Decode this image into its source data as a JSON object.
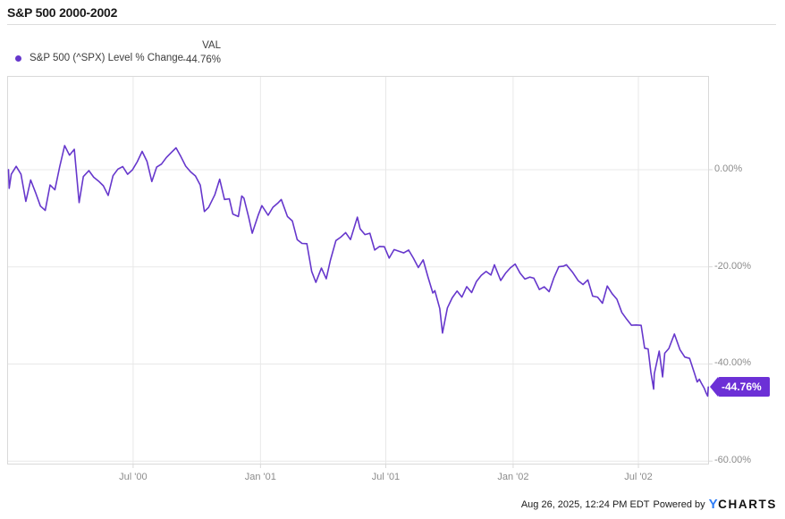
{
  "header": {
    "title": "S&P 500 2000-2002"
  },
  "legend": {
    "series_label": "S&P 500 (^SPX) Level % Change",
    "val_header": "VAL",
    "val_value": "-44.76%"
  },
  "footer": {
    "timestamp": "Aug 26, 2025, 12:24 PM EDT",
    "powered_by": "Powered by",
    "logo_y": "Y",
    "logo_charts": "CHARTS"
  },
  "colors": {
    "line": "#6637cc",
    "badge_bg": "#6c30d6",
    "badge_text": "#ffffff",
    "grid": "#e8e8e8",
    "plot_border": "#d9d9d9",
    "axis_text": "#8c8c8c",
    "legend_marker": "#6637cc"
  },
  "chart_data": {
    "type": "line",
    "title": "S&P 500 2000-2002",
    "ylabel": "Level % Change",
    "grid": true,
    "legend_position": "top-left",
    "last_value_label": "-44.76%",
    "x_axis": {
      "min": "2000-01-01",
      "max": "2002-10-11",
      "ticks": [
        {
          "date": "2000-07-01",
          "label": "Jul '00"
        },
        {
          "date": "2001-01-01",
          "label": "Jan '01"
        },
        {
          "date": "2001-07-01",
          "label": "Jul '01"
        },
        {
          "date": "2002-01-01",
          "label": "Jan '02"
        },
        {
          "date": "2002-07-01",
          "label": "Jul '02"
        }
      ]
    },
    "y_axis": {
      "min": -60.7,
      "max": 19.3,
      "unit": "%",
      "ticks": [
        {
          "value": 0,
          "label": "0.00%"
        },
        {
          "value": -20,
          "label": "-20.00%"
        },
        {
          "value": -40,
          "label": "-40.00%"
        },
        {
          "value": -60,
          "label": "-60.00%"
        }
      ]
    },
    "series": [
      {
        "name": "S&P 500 (^SPX) Level % Change",
        "color": "#6637cc",
        "points": [
          [
            "2000-01-03",
            0.0
          ],
          [
            "2000-01-04",
            -3.83
          ],
          [
            "2000-01-07",
            -0.94
          ],
          [
            "2000-01-14",
            0.68
          ],
          [
            "2000-01-21",
            -0.95
          ],
          [
            "2000-01-28",
            -6.53
          ],
          [
            "2000-02-04",
            -2.12
          ],
          [
            "2000-02-11",
            -4.68
          ],
          [
            "2000-02-18",
            -7.5
          ],
          [
            "2000-02-25",
            -8.37
          ],
          [
            "2000-03-03",
            -3.16
          ],
          [
            "2000-03-10",
            -4.13
          ],
          [
            "2000-03-17",
            0.64
          ],
          [
            "2000-03-24",
            4.96
          ],
          [
            "2000-03-31",
            2.98
          ],
          [
            "2000-04-07",
            4.2
          ],
          [
            "2000-04-14",
            -6.78
          ],
          [
            "2000-04-20",
            -1.42
          ],
          [
            "2000-04-28",
            -0.19
          ],
          [
            "2000-05-05",
            -1.55
          ],
          [
            "2000-05-12",
            -2.35
          ],
          [
            "2000-05-19",
            -3.32
          ],
          [
            "2000-05-26",
            -5.3
          ],
          [
            "2000-06-02",
            -1.24
          ],
          [
            "2000-06-09",
            0.12
          ],
          [
            "2000-06-16",
            0.63
          ],
          [
            "2000-06-23",
            -0.94
          ],
          [
            "2000-06-30",
            -0.04
          ],
          [
            "2000-07-07",
            1.63
          ],
          [
            "2000-07-14",
            3.76
          ],
          [
            "2000-07-21",
            1.72
          ],
          [
            "2000-07-28",
            -2.43
          ],
          [
            "2000-08-04",
            0.53
          ],
          [
            "2000-08-11",
            1.14
          ],
          [
            "2000-08-18",
            2.51
          ],
          [
            "2000-08-25",
            3.52
          ],
          [
            "2000-09-01",
            4.5
          ],
          [
            "2000-09-08",
            2.7
          ],
          [
            "2000-09-15",
            0.73
          ],
          [
            "2000-09-22",
            -0.45
          ],
          [
            "2000-09-29",
            -1.29
          ],
          [
            "2000-10-06",
            -3.18
          ],
          [
            "2000-10-12",
            -8.62
          ],
          [
            "2000-10-18",
            -7.77
          ],
          [
            "2000-10-27",
            -5.2
          ],
          [
            "2000-11-03",
            -1.96
          ],
          [
            "2000-11-10",
            -6.13
          ],
          [
            "2000-11-17",
            -6.01
          ],
          [
            "2000-11-22",
            -9.13
          ],
          [
            "2000-11-30",
            -9.64
          ],
          [
            "2000-12-05",
            -5.41
          ],
          [
            "2000-12-08",
            -5.86
          ],
          [
            "2000-12-15",
            -9.83
          ],
          [
            "2000-12-20",
            -13.09
          ],
          [
            "2000-12-29",
            -9.27
          ],
          [
            "2001-01-03",
            -7.4
          ],
          [
            "2001-01-12",
            -9.39
          ],
          [
            "2001-01-19",
            -7.74
          ],
          [
            "2001-01-26",
            -6.89
          ],
          [
            "2001-01-31",
            -6.13
          ],
          [
            "2001-02-09",
            -9.65
          ],
          [
            "2001-02-16",
            -10.56
          ],
          [
            "2001-02-23",
            -14.39
          ],
          [
            "2001-03-02",
            -15.19
          ],
          [
            "2001-03-09",
            -15.24
          ],
          [
            "2001-03-16",
            -20.94
          ],
          [
            "2001-03-22",
            -23.2
          ],
          [
            "2001-03-30",
            -20.26
          ],
          [
            "2001-04-06",
            -22.46
          ],
          [
            "2001-04-12",
            -18.67
          ],
          [
            "2001-04-20",
            -14.59
          ],
          [
            "2001-04-27",
            -13.89
          ],
          [
            "2001-05-04",
            -12.96
          ],
          [
            "2001-05-11",
            -14.4
          ],
          [
            "2001-05-21",
            -9.78
          ],
          [
            "2001-05-25",
            -12.19
          ],
          [
            "2001-06-01",
            -13.37
          ],
          [
            "2001-06-08",
            -13.08
          ],
          [
            "2001-06-15",
            -16.55
          ],
          [
            "2001-06-22",
            -15.8
          ],
          [
            "2001-06-29",
            -15.86
          ],
          [
            "2001-07-06",
            -18.19
          ],
          [
            "2001-07-13",
            -16.46
          ],
          [
            "2001-07-20",
            -16.79
          ],
          [
            "2001-07-27",
            -17.14
          ],
          [
            "2001-08-03",
            -16.55
          ],
          [
            "2001-08-10",
            -18.21
          ],
          [
            "2001-08-17",
            -20.15
          ],
          [
            "2001-08-24",
            -18.57
          ],
          [
            "2001-08-31",
            -22.1
          ],
          [
            "2001-09-07",
            -25.39
          ],
          [
            "2001-09-10",
            -24.92
          ],
          [
            "2001-09-17",
            -28.62
          ],
          [
            "2001-09-21",
            -33.63
          ],
          [
            "2001-09-28",
            -28.47
          ],
          [
            "2001-10-05",
            -26.38
          ],
          [
            "2001-10-12",
            -24.98
          ],
          [
            "2001-10-19",
            -26.23
          ],
          [
            "2001-10-26",
            -24.09
          ],
          [
            "2001-11-02",
            -25.29
          ],
          [
            "2001-11-09",
            -23.01
          ],
          [
            "2001-11-16",
            -21.75
          ],
          [
            "2001-11-23",
            -20.95
          ],
          [
            "2001-11-30",
            -21.7
          ],
          [
            "2001-12-05",
            -19.58
          ],
          [
            "2001-12-14",
            -22.82
          ],
          [
            "2001-12-21",
            -21.33
          ],
          [
            "2001-12-28",
            -20.22
          ],
          [
            "2002-01-04",
            -19.43
          ],
          [
            "2002-01-11",
            -21.28
          ],
          [
            "2002-01-18",
            -22.52
          ],
          [
            "2002-01-25",
            -22.12
          ],
          [
            "2002-01-31",
            -22.34
          ],
          [
            "2002-02-08",
            -24.67
          ],
          [
            "2002-02-15",
            -24.12
          ],
          [
            "2002-02-22",
            -25.11
          ],
          [
            "2002-03-01",
            -22.23
          ],
          [
            "2002-03-08",
            -19.99
          ],
          [
            "2002-03-15",
            -19.86
          ],
          [
            "2002-03-19",
            -19.58
          ],
          [
            "2002-03-28",
            -21.15
          ],
          [
            "2002-04-05",
            -22.85
          ],
          [
            "2002-04-12",
            -23.65
          ],
          [
            "2002-04-19",
            -22.68
          ],
          [
            "2002-04-26",
            -26.04
          ],
          [
            "2002-05-03",
            -26.24
          ],
          [
            "2002-05-10",
            -27.5
          ],
          [
            "2002-05-17",
            -23.96
          ],
          [
            "2002-05-24",
            -25.52
          ],
          [
            "2002-05-31",
            -26.67
          ],
          [
            "2002-06-07",
            -29.39
          ],
          [
            "2002-06-14",
            -30.78
          ],
          [
            "2002-06-21",
            -32.03
          ],
          [
            "2002-06-28",
            -31.98
          ],
          [
            "2002-07-05",
            -32.04
          ],
          [
            "2002-07-10",
            -36.75
          ],
          [
            "2002-07-15",
            -36.92
          ],
          [
            "2002-07-19",
            -41.74
          ],
          [
            "2002-07-23",
            -45.18
          ],
          [
            "2002-07-24",
            -42.04
          ],
          [
            "2002-07-31",
            -37.35
          ],
          [
            "2002-08-05",
            -42.65
          ],
          [
            "2002-08-08",
            -37.78
          ],
          [
            "2002-08-14",
            -36.81
          ],
          [
            "2002-08-22",
            -33.84
          ],
          [
            "2002-08-30",
            -37.05
          ],
          [
            "2002-09-06",
            -38.57
          ],
          [
            "2002-09-13",
            -38.85
          ],
          [
            "2002-09-20",
            -41.91
          ],
          [
            "2002-09-24",
            -43.7
          ],
          [
            "2002-09-27",
            -43.14
          ],
          [
            "2002-09-30",
            -43.97
          ],
          [
            "2002-10-04",
            -44.98
          ],
          [
            "2002-10-07",
            -46.03
          ],
          [
            "2002-10-09",
            -46.62
          ],
          [
            "2002-10-10",
            -44.76
          ]
        ]
      }
    ]
  }
}
